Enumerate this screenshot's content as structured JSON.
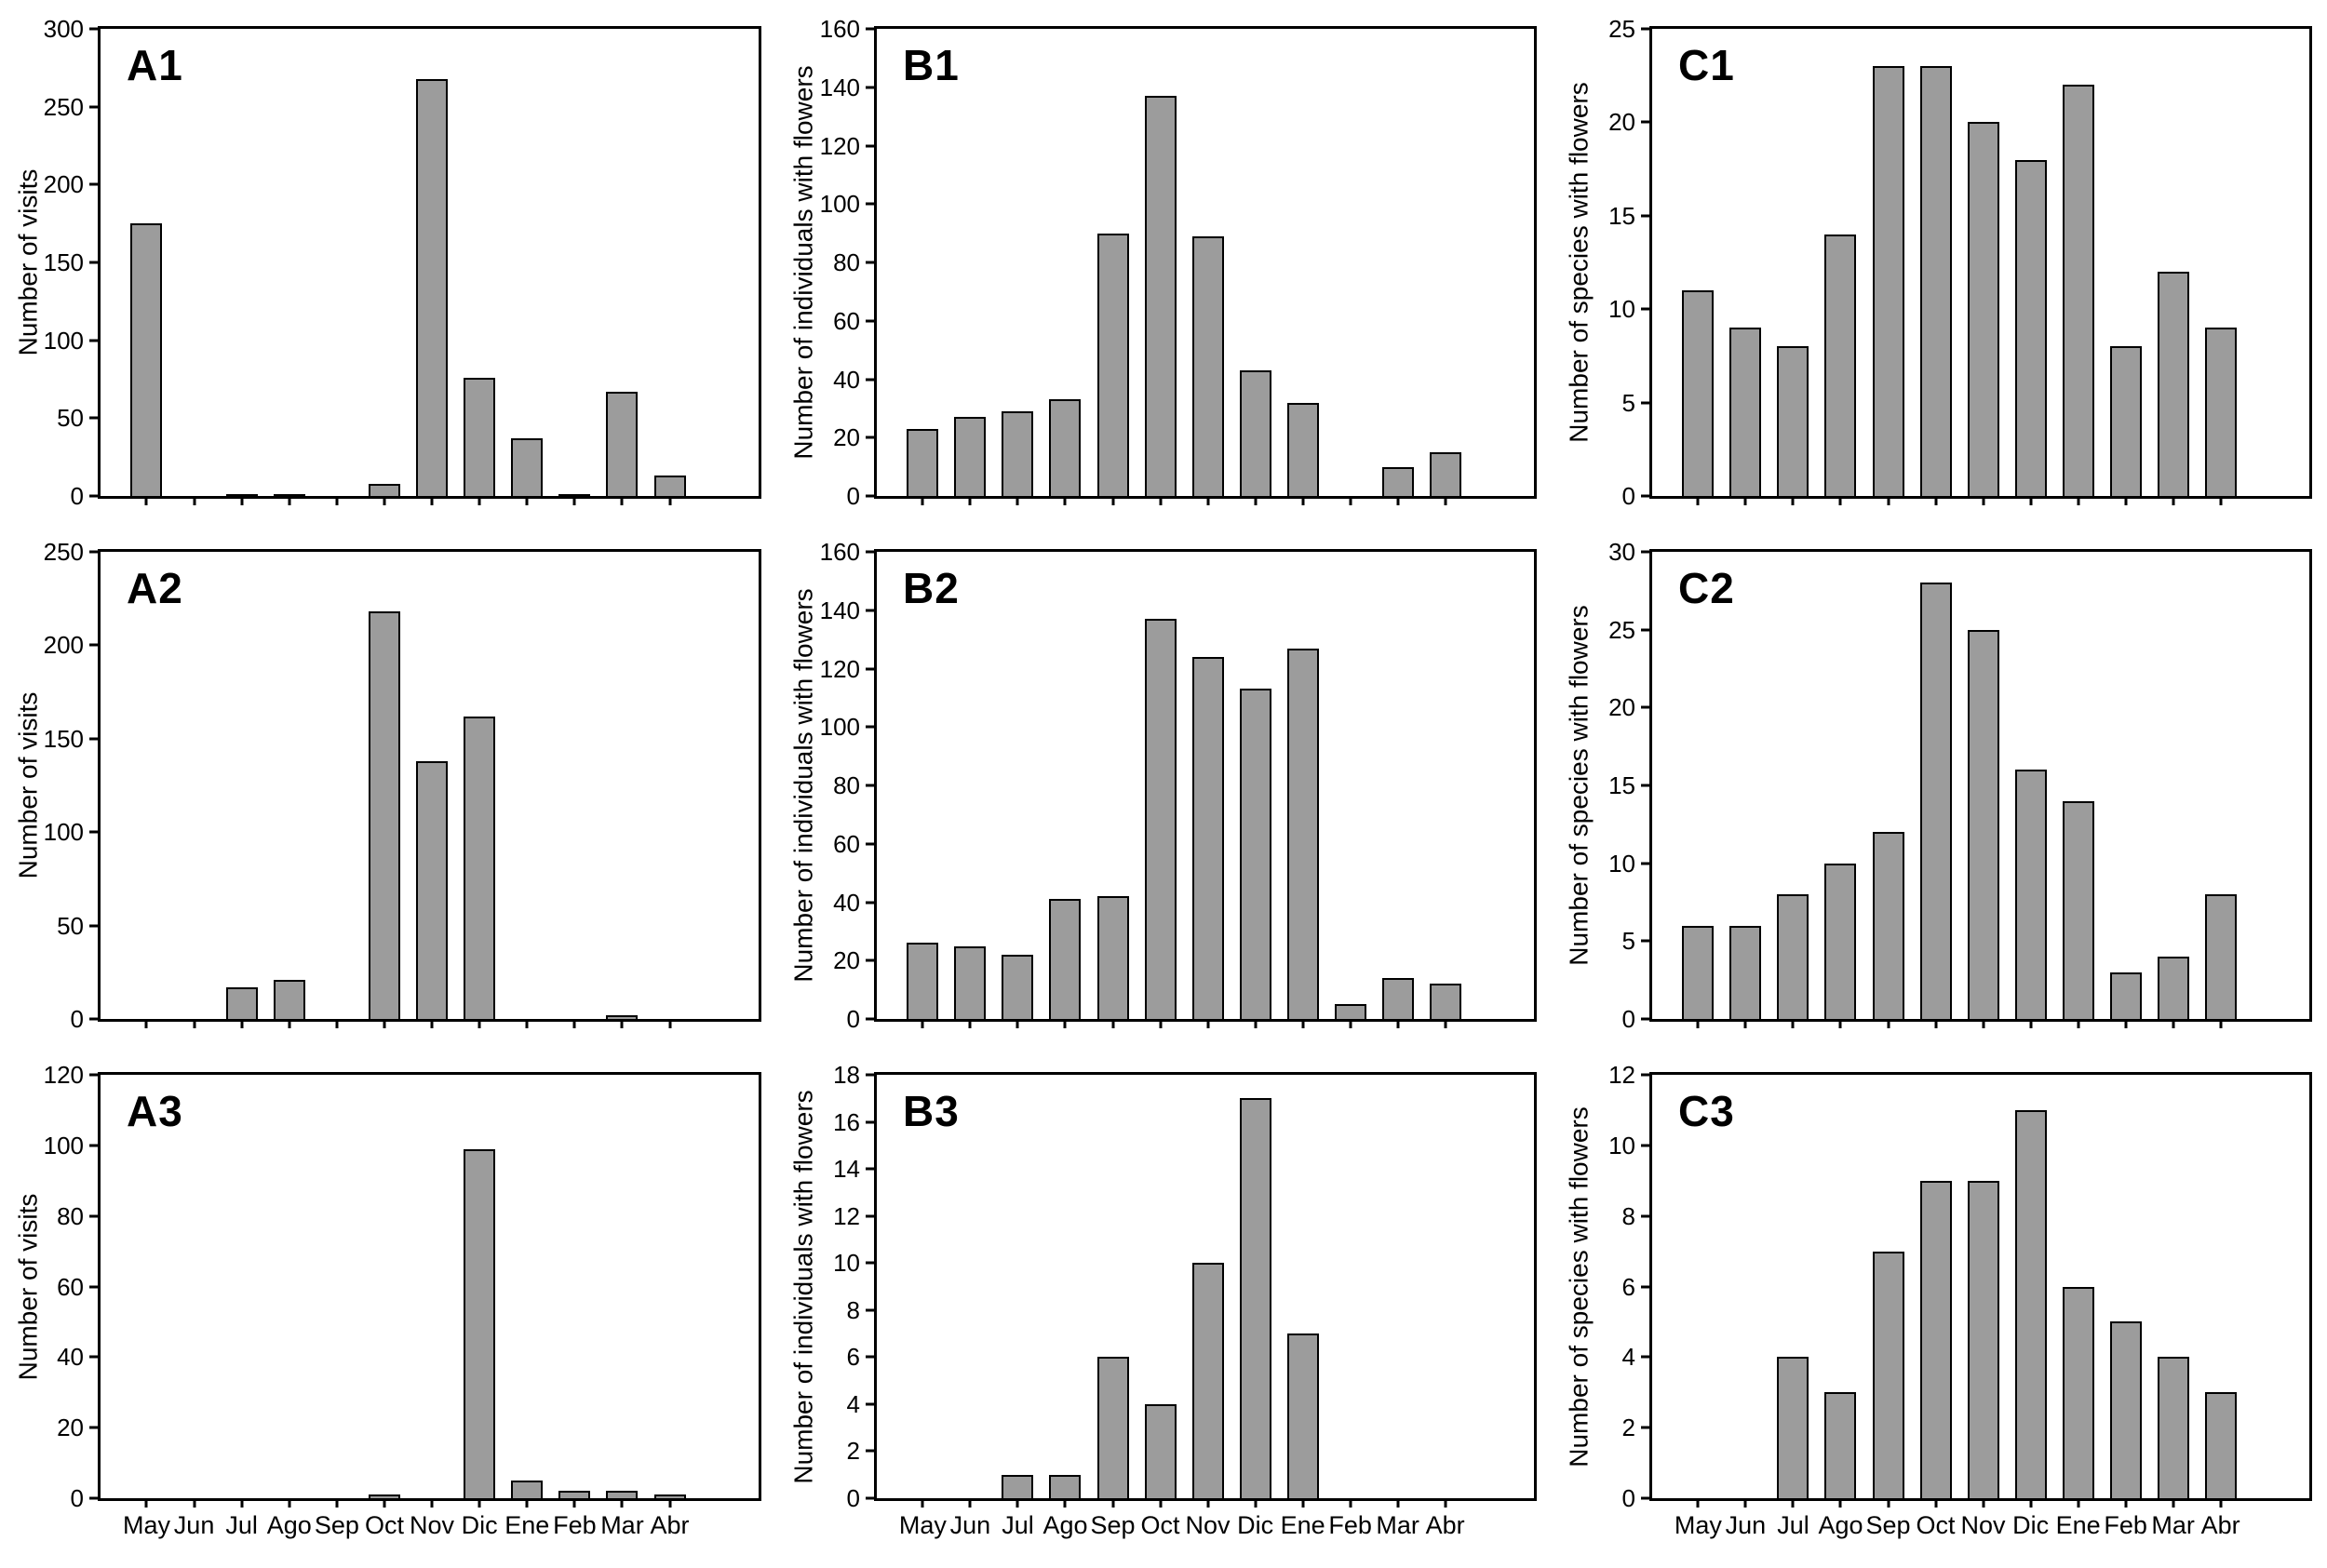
{
  "figure": {
    "kind": "3x3 multi-panel bar chart figure",
    "background": "#ffffff"
  },
  "colors": {
    "bar_fill": "#9c9c9c",
    "bar_border": "#000000",
    "axis": "#000000"
  },
  "months": [
    "May",
    "Jun",
    "Jul",
    "Ago",
    "Sep",
    "Oct",
    "Nov",
    "Dic",
    "Ene",
    "Feb",
    "Mar",
    "Abr"
  ],
  "chart_data": [
    {
      "type": "bar",
      "label": "A1",
      "ylabel": "Number of visits",
      "categories": [
        "May",
        "Jun",
        "Jul",
        "Ago",
        "Sep",
        "Oct",
        "Nov",
        "Dic",
        "Ene",
        "Feb",
        "Mar",
        "Abr"
      ],
      "values": [
        175,
        0,
        1,
        1,
        0,
        8,
        268,
        76,
        37,
        1,
        67,
        13
      ],
      "ylim": [
        0,
        300
      ],
      "ytick_step": 50,
      "grid": false,
      "xlabels_visible": false
    },
    {
      "type": "bar",
      "label": "B1",
      "ylabel": "Number of individuals with flowers",
      "categories": [
        "May",
        "Jun",
        "Jul",
        "Ago",
        "Sep",
        "Oct",
        "Nov",
        "Dic",
        "Ene",
        "Feb",
        "Mar",
        "Abr"
      ],
      "values": [
        23,
        27,
        29,
        33,
        90,
        137,
        89,
        43,
        32,
        0,
        10,
        15
      ],
      "ylim": [
        0,
        160
      ],
      "ytick_step": 20,
      "grid": false,
      "xlabels_visible": false
    },
    {
      "type": "bar",
      "label": "C1",
      "ylabel": "Number of species with flowers",
      "categories": [
        "May",
        "Jun",
        "Jul",
        "Ago",
        "Sep",
        "Oct",
        "Nov",
        "Dic",
        "Ene",
        "Feb",
        "Mar",
        "Abr"
      ],
      "values": [
        11,
        9,
        8,
        14,
        23,
        23,
        20,
        18,
        22,
        8,
        12,
        9
      ],
      "ylim": [
        0,
        25
      ],
      "ytick_step": 5,
      "grid": false,
      "xlabels_visible": false
    },
    {
      "type": "bar",
      "label": "A2",
      "ylabel": "Number of visits",
      "categories": [
        "May",
        "Jun",
        "Jul",
        "Ago",
        "Sep",
        "Oct",
        "Nov",
        "Dic",
        "Ene",
        "Feb",
        "Mar",
        "Abr"
      ],
      "values": [
        0,
        0,
        17,
        21,
        0,
        218,
        138,
        162,
        0,
        0,
        2,
        0
      ],
      "ylim": [
        0,
        250
      ],
      "ytick_step": 50,
      "grid": false,
      "xlabels_visible": false
    },
    {
      "type": "bar",
      "label": "B2",
      "ylabel": "Number of individuals with flowers",
      "categories": [
        "May",
        "Jun",
        "Jul",
        "Ago",
        "Sep",
        "Oct",
        "Nov",
        "Dic",
        "Ene",
        "Feb",
        "Mar",
        "Abr"
      ],
      "values": [
        26,
        25,
        22,
        41,
        42,
        137,
        124,
        113,
        127,
        5,
        14,
        12
      ],
      "ylim": [
        0,
        160
      ],
      "ytick_step": 20,
      "grid": false,
      "xlabels_visible": false
    },
    {
      "type": "bar",
      "label": "C2",
      "ylabel": "Number of species with flowers",
      "categories": [
        "May",
        "Jun",
        "Jul",
        "Ago",
        "Sep",
        "Oct",
        "Nov",
        "Dic",
        "Ene",
        "Feb",
        "Mar",
        "Abr"
      ],
      "values": [
        6,
        6,
        8,
        10,
        12,
        28,
        25,
        16,
        14,
        3,
        4,
        8
      ],
      "ylim": [
        0,
        30
      ],
      "ytick_step": 5,
      "grid": false,
      "xlabels_visible": false
    },
    {
      "type": "bar",
      "label": "A3",
      "ylabel": "Number of visits",
      "categories": [
        "May",
        "Jun",
        "Jul",
        "Ago",
        "Sep",
        "Oct",
        "Nov",
        "Dic",
        "Ene",
        "Feb",
        "Mar",
        "Abr"
      ],
      "values": [
        0,
        0,
        0,
        0,
        0,
        1,
        0,
        99,
        5,
        2,
        2,
        1
      ],
      "ylim": [
        0,
        120
      ],
      "ytick_step": 20,
      "grid": false,
      "xlabels_visible": true
    },
    {
      "type": "bar",
      "label": "B3",
      "ylabel": "Number of individuals with flowers",
      "categories": [
        "May",
        "Jun",
        "Jul",
        "Ago",
        "Sep",
        "Oct",
        "Nov",
        "Dic",
        "Ene",
        "Feb",
        "Mar",
        "Abr"
      ],
      "values": [
        0,
        0,
        1,
        1,
        6,
        4,
        10,
        17,
        7,
        0,
        0,
        0
      ],
      "ylim": [
        0,
        18
      ],
      "ytick_step": 2,
      "grid": false,
      "xlabels_visible": true
    },
    {
      "type": "bar",
      "label": "C3",
      "ylabel": "Number of species with flowers",
      "categories": [
        "May",
        "Jun",
        "Jul",
        "Ago",
        "Sep",
        "Oct",
        "Nov",
        "Dic",
        "Ene",
        "Feb",
        "Mar",
        "Abr"
      ],
      "values": [
        0,
        0,
        4,
        3,
        7,
        9,
        9,
        11,
        6,
        5,
        4,
        3
      ],
      "ylim": [
        0,
        12
      ],
      "ytick_step": 2,
      "grid": false,
      "xlabels_visible": true
    }
  ]
}
